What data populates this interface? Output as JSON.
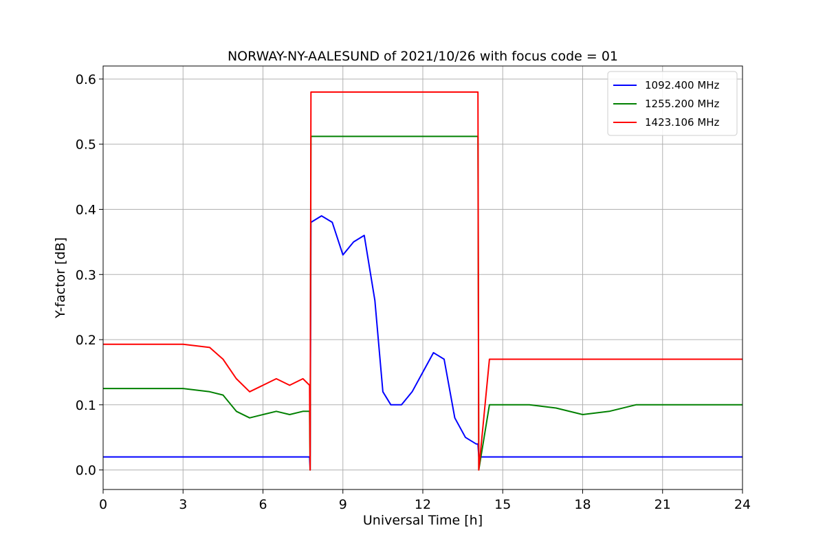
{
  "chart_data": {
    "type": "line",
    "title": "NORWAY-NY-AALESUND of 2021/10/26 with focus code = 01",
    "xlabel": "Universal Time [h]",
    "ylabel": "Y-factor [dB]",
    "xlim": [
      0,
      24
    ],
    "ylim": [
      -0.03,
      0.62
    ],
    "xticks": [
      0,
      3,
      6,
      9,
      12,
      15,
      18,
      21,
      24
    ],
    "xtick_labels": [
      "0",
      "3",
      "6",
      "9",
      "12",
      "15",
      "18",
      "21",
      "24"
    ],
    "yticks": [
      0.0,
      0.1,
      0.2,
      0.3,
      0.4,
      0.5,
      0.6
    ],
    "ytick_labels": [
      "0.0",
      "0.1",
      "0.2",
      "0.3",
      "0.4",
      "0.5",
      "0.6"
    ],
    "grid": true,
    "legend_position": "top-right",
    "series": [
      {
        "name": "1092.400 MHz",
        "color": "#0000ff",
        "x": [
          0,
          7.75,
          7.77,
          7.8,
          8.2,
          8.6,
          9.0,
          9.4,
          9.8,
          10.2,
          10.5,
          10.8,
          11.2,
          11.6,
          12.0,
          12.4,
          12.8,
          13.2,
          13.6,
          14.0,
          14.07,
          14.1,
          14.5,
          15.0,
          16.0,
          17.0,
          18.0,
          19.0,
          20.0,
          21.0,
          22.0,
          23.0,
          24.0
        ],
        "y": [
          0.02,
          0.02,
          0.0,
          0.38,
          0.39,
          0.38,
          0.33,
          0.35,
          0.36,
          0.26,
          0.12,
          0.1,
          0.1,
          0.12,
          0.15,
          0.18,
          0.17,
          0.08,
          0.05,
          0.04,
          0.04,
          0.02,
          0.02,
          0.02,
          0.02,
          0.02,
          0.02,
          0.02,
          0.02,
          0.02,
          0.02,
          0.02,
          0.02
        ]
      },
      {
        "name": "1255.200 MHz",
        "color": "#008000",
        "x": [
          0,
          1.0,
          2.0,
          3.0,
          4.0,
          4.5,
          5.0,
          5.5,
          6.0,
          6.5,
          7.0,
          7.5,
          7.75,
          7.77,
          7.8,
          9.0,
          10.0,
          11.0,
          12.0,
          13.0,
          14.0,
          14.07,
          14.1,
          14.5,
          15.0,
          16.0,
          17.0,
          18.0,
          19.0,
          20.0,
          21.0,
          22.0,
          23.0,
          24.0
        ],
        "y": [
          0.125,
          0.125,
          0.125,
          0.125,
          0.12,
          0.115,
          0.09,
          0.08,
          0.085,
          0.09,
          0.085,
          0.09,
          0.09,
          0.0,
          0.512,
          0.512,
          0.512,
          0.512,
          0.512,
          0.512,
          0.512,
          0.512,
          0.0,
          0.1,
          0.1,
          0.1,
          0.095,
          0.085,
          0.09,
          0.1,
          0.1,
          0.1,
          0.1,
          0.1
        ]
      },
      {
        "name": "1423.106 MHz",
        "color": "#ff0000",
        "x": [
          0,
          1.0,
          2.0,
          3.0,
          4.0,
          4.5,
          5.0,
          5.5,
          6.0,
          6.5,
          7.0,
          7.5,
          7.75,
          7.77,
          7.8,
          9.0,
          10.0,
          11.0,
          12.0,
          13.0,
          14.0,
          14.07,
          14.1,
          14.5,
          15.0,
          16.0,
          17.0,
          18.0,
          19.0,
          20.0,
          21.0,
          22.0,
          23.0,
          24.0
        ],
        "y": [
          0.193,
          0.193,
          0.193,
          0.193,
          0.188,
          0.17,
          0.14,
          0.12,
          0.13,
          0.14,
          0.13,
          0.14,
          0.13,
          0.0,
          0.58,
          0.58,
          0.58,
          0.58,
          0.58,
          0.58,
          0.58,
          0.58,
          0.0,
          0.17,
          0.17,
          0.17,
          0.17,
          0.17,
          0.17,
          0.17,
          0.17,
          0.17,
          0.17,
          0.17
        ]
      }
    ]
  }
}
